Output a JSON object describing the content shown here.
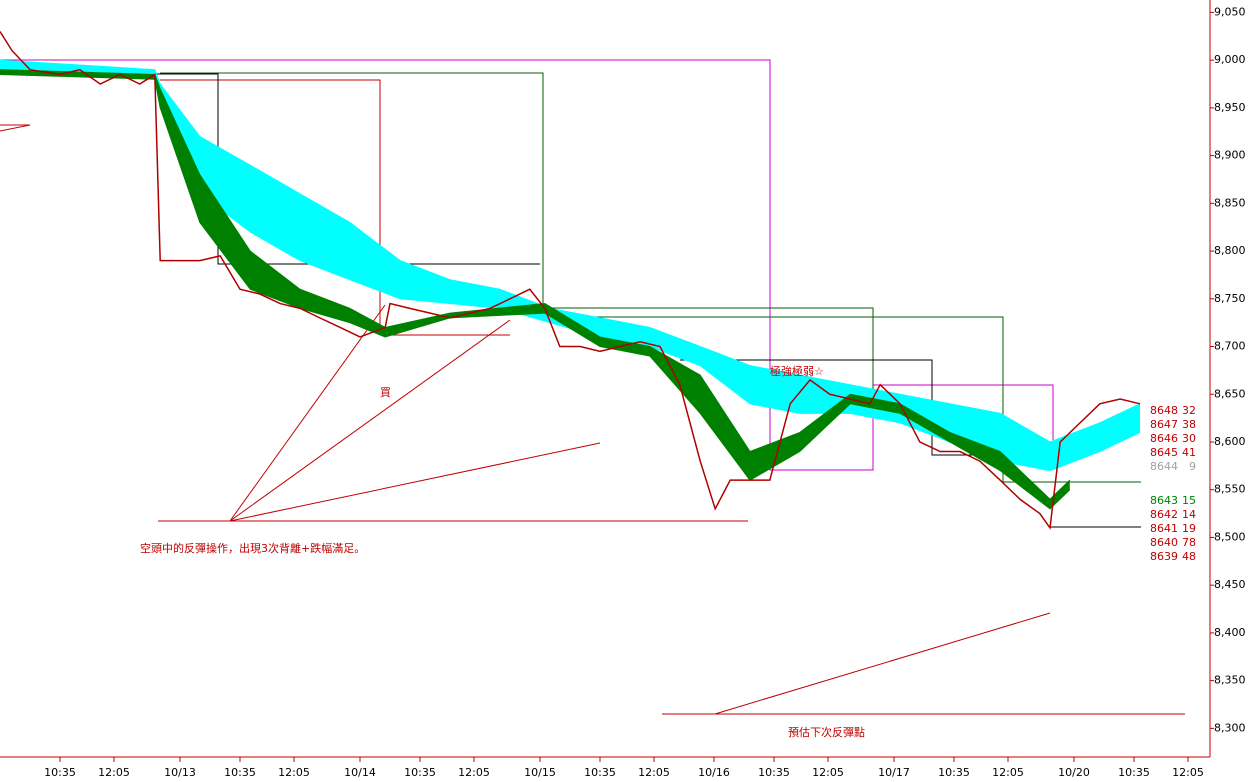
{
  "chart_data": {
    "type": "line",
    "xlim": [
      0,
      200
    ],
    "ylim": [
      8270,
      9063
    ],
    "yticks": [
      {
        "value": 8300,
        "label": "8,300"
      },
      {
        "value": 8350,
        "label": "8,350"
      },
      {
        "value": 8400,
        "label": "8,400"
      },
      {
        "value": 8450,
        "label": "8,450"
      },
      {
        "value": 8500,
        "label": "8,500"
      },
      {
        "value": 8550,
        "label": "8,550"
      },
      {
        "value": 8600,
        "label": "8,600"
      },
      {
        "value": 8650,
        "label": "8,650"
      },
      {
        "value": 8700,
        "label": "8,700"
      },
      {
        "value": 8750,
        "label": "8,750"
      },
      {
        "value": 8800,
        "label": "8,800"
      },
      {
        "value": 8850,
        "label": "8,850"
      },
      {
        "value": 8900,
        "label": "8,900"
      },
      {
        "value": 8950,
        "label": "8,950"
      },
      {
        "value": 9000,
        "label": "9,000"
      },
      {
        "value": 9050,
        "label": "9,050"
      }
    ],
    "xticks": [
      {
        "value": 10,
        "label": "10:35"
      },
      {
        "value": 19,
        "label": "12:05"
      },
      {
        "value": 30,
        "label": "10/13"
      },
      {
        "value": 40,
        "label": "10:35"
      },
      {
        "value": 49,
        "label": "12:05"
      },
      {
        "value": 60,
        "label": "10/14"
      },
      {
        "value": 70,
        "label": "10:35"
      },
      {
        "value": 79,
        "label": "12:05"
      },
      {
        "value": 90,
        "label": "10/15"
      },
      {
        "value": 100,
        "label": "10:35"
      },
      {
        "value": 109,
        "label": "12:05"
      },
      {
        "value": 119,
        "label": "10/16"
      },
      {
        "value": 129,
        "label": "10:35"
      },
      {
        "value": 138,
        "label": "12:05"
      },
      {
        "value": 149,
        "label": "10/17"
      },
      {
        "value": 159,
        "label": "10:35"
      },
      {
        "value": 168,
        "label": "12:05"
      },
      {
        "value": 179,
        "label": "10/20"
      },
      {
        "value": 189,
        "label": "10:35"
      },
      {
        "value": 198,
        "label": "12:05"
      }
    ],
    "bands": [
      {
        "color": "#00ffff",
        "x": [
          0,
          25.8,
          26.7,
          33.3,
          41.7,
          50,
          58.3,
          66.7,
          75,
          83.3,
          91.7,
          100,
          108.3,
          116.7,
          125,
          133.3,
          141.7,
          150,
          158.3,
          166.7,
          175,
          183.3,
          190
        ],
        "upper": [
          9000,
          8990,
          8975,
          8920,
          8890,
          8860,
          8830,
          8790,
          8770,
          8760,
          8740,
          8730,
          8720,
          8700,
          8680,
          8670,
          8660,
          8650,
          8640,
          8630,
          8600,
          8620,
          8640
        ],
        "lower": [
          8990,
          8980,
          8960,
          8860,
          8820,
          8790,
          8770,
          8750,
          8745,
          8740,
          8725,
          8710,
          8700,
          8680,
          8640,
          8630,
          8630,
          8620,
          8600,
          8580,
          8570,
          8590,
          8610
        ]
      },
      {
        "color": "#008000",
        "x": [
          0,
          25.8,
          26.7,
          33.3,
          41.7,
          50,
          58.3,
          64.2,
          75,
          90.8,
          100,
          108.3,
          116.7,
          125,
          133.3,
          141.7,
          150,
          158.3,
          166.7,
          175,
          178.3
        ],
        "upper": [
          8990,
          8985,
          8970,
          8880,
          8800,
          8760,
          8740,
          8720,
          8735,
          8745,
          8710,
          8700,
          8670,
          8590,
          8610,
          8650,
          8640,
          8610,
          8590,
          8540,
          8560
        ],
        "lower": [
          8985,
          8980,
          8950,
          8830,
          8760,
          8740,
          8725,
          8710,
          8730,
          8735,
          8700,
          8690,
          8630,
          8560,
          8590,
          8640,
          8630,
          8600,
          8570,
          8530,
          8550
        ]
      }
    ],
    "series": [
      {
        "color": "#b00000",
        "x": [
          0,
          2,
          5,
          10,
          13.3,
          16.7,
          20,
          23.3,
          25.8,
          26.7,
          30,
          33.3,
          36.7,
          40,
          43.3,
          46.7,
          50,
          53.3,
          56.7,
          60,
          64.2,
          65,
          68.3,
          71.7,
          75,
          78.3,
          81.7,
          85,
          88.3,
          90.8,
          93.3,
          96.7,
          100,
          103.3,
          106.7,
          110,
          113.3,
          116.7,
          119.2,
          121.7,
          125,
          128.3,
          131.7,
          135,
          138.3,
          141.7,
          145,
          146.7,
          150,
          153.3,
          156.7,
          160,
          163.3,
          166.7,
          170,
          173.3,
          175,
          176.7,
          180,
          183.3,
          186.7,
          190
        ],
        "values": [
          9030,
          9010,
          8990,
          8985,
          8990,
          8975,
          8985,
          8975,
          8985,
          8790,
          8790,
          8790,
          8795,
          8760,
          8755,
          8745,
          8740,
          8730,
          8720,
          8710,
          8720,
          8745,
          8740,
          8735,
          8730,
          8735,
          8740,
          8750,
          8760,
          8740,
          8700,
          8700,
          8695,
          8700,
          8705,
          8700,
          8660,
          8580,
          8530,
          8560,
          8560,
          8560,
          8640,
          8665,
          8650,
          8645,
          8640,
          8660,
          8640,
          8600,
          8590,
          8590,
          8580,
          8560,
          8540,
          8525,
          8510,
          8600,
          8620,
          8640,
          8645,
          8640
        ]
      }
    ],
    "annotations": [
      "空頭中的反彈操作，出現3次背離+跌幅滿足。",
      "預估下次反彈點",
      "買",
      "極強極弱☆"
    ],
    "quotes": [
      {
        "price": 8648,
        "volume": 32,
        "color": "#c00000"
      },
      {
        "price": 8647,
        "volume": 38,
        "color": "#c00000"
      },
      {
        "price": 8646,
        "volume": 30,
        "color": "#c00000"
      },
      {
        "price": 8645,
        "volume": 41,
        "color": "#c00000"
      },
      {
        "price": 8644,
        "volume": 9,
        "color": "#a0a0a0"
      },
      {
        "price": 8643,
        "volume": 15,
        "color": "#008000"
      },
      {
        "price": 8642,
        "volume": 14,
        "color": "#c00000"
      },
      {
        "price": 8641,
        "volume": 19,
        "color": "#c00000"
      },
      {
        "price": 8640,
        "volume": 78,
        "color": "#c00000"
      },
      {
        "price": 8639,
        "volume": 48,
        "color": "#c00000"
      }
    ]
  }
}
